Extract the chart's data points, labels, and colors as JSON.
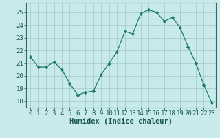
{
  "x": [
    0,
    1,
    2,
    3,
    4,
    5,
    6,
    7,
    8,
    9,
    10,
    11,
    12,
    13,
    14,
    15,
    16,
    17,
    18,
    19,
    20,
    21,
    22,
    23
  ],
  "y": [
    21.5,
    20.7,
    20.7,
    21.1,
    20.5,
    19.4,
    18.5,
    18.7,
    18.8,
    20.1,
    21.0,
    21.9,
    23.5,
    23.3,
    24.9,
    25.2,
    25.0,
    24.3,
    24.6,
    23.8,
    22.3,
    21.0,
    19.3,
    17.9
  ],
  "xlabel": "Humidex (Indice chaleur)",
  "xlim": [
    -0.5,
    23.5
  ],
  "ylim": [
    17.5,
    25.75
  ],
  "yticks": [
    18,
    19,
    20,
    21,
    22,
    23,
    24,
    25
  ],
  "xticks": [
    0,
    1,
    2,
    3,
    4,
    5,
    6,
    7,
    8,
    9,
    10,
    11,
    12,
    13,
    14,
    15,
    16,
    17,
    18,
    19,
    20,
    21,
    22,
    23
  ],
  "line_color": "#1a7a6e",
  "marker_color": "#1a7a6e",
  "bg_color": "#c8eaea",
  "grid_color": "#a8cccc",
  "tick_fontsize": 6.5,
  "xlabel_fontsize": 7.5
}
